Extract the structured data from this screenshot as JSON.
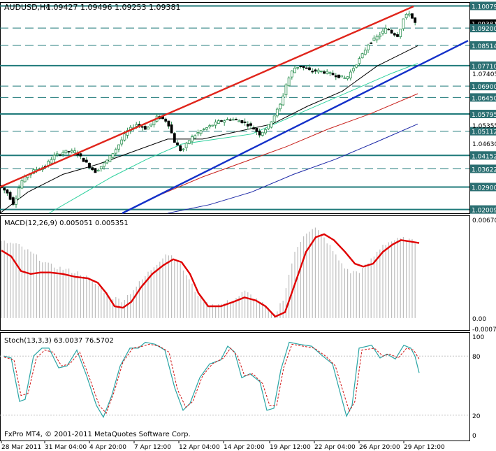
{
  "chart_data": [
    {
      "type": "candlestick",
      "title": "AUDUSD,H4",
      "ohlc_header": "1.09427 1.09496 1.09253 1.09381",
      "x_ticks": [
        "28 Mar 2011",
        "31 Mar 04:00",
        "4 Apr 20:00",
        "7 Apr 12:00",
        "12 Apr 04:00",
        "14 Apr 20:00",
        "19 Apr 12:00",
        "22 Apr 04:00",
        "26 Apr 20:00",
        "29 Apr 12:00"
      ],
      "ylim": [
        1.0186,
        1.1023
      ],
      "y_ticks": [
        "1.07405",
        "1.05355",
        "1.04630"
      ],
      "price_levels": [
        "1.10079",
        "1.09381",
        "1.09200",
        "1.08514",
        "1.07710",
        "1.06900",
        "1.06450",
        "1.05795",
        "1.05112",
        "1.04152",
        "1.03622",
        "1.02900",
        "1.02009"
      ],
      "current_price": 1.09381,
      "price_path": [
        [
          0,
          1.03
        ],
        [
          14,
          1.027
        ],
        [
          24,
          1.022
        ],
        [
          34,
          1.031
        ],
        [
          44,
          1.034
        ],
        [
          56,
          1.036
        ],
        [
          68,
          1.037
        ],
        [
          80,
          1.041
        ],
        [
          96,
          1.043
        ],
        [
          112,
          1.043
        ],
        [
          126,
          1.039
        ],
        [
          140,
          1.035
        ],
        [
          156,
          1.039
        ],
        [
          170,
          1.044
        ],
        [
          186,
          1.051
        ],
        [
          200,
          1.054
        ],
        [
          214,
          1.052
        ],
        [
          230,
          1.057
        ],
        [
          244,
          1.055
        ],
        [
          254,
          1.047
        ],
        [
          264,
          1.043
        ],
        [
          276,
          1.048
        ],
        [
          290,
          1.051
        ],
        [
          304,
          1.053
        ],
        [
          318,
          1.055
        ],
        [
          334,
          1.056
        ],
        [
          350,
          1.055
        ],
        [
          364,
          1.053
        ],
        [
          376,
          1.05
        ],
        [
          388,
          1.053
        ],
        [
          398,
          1.058
        ],
        [
          406,
          1.062
        ],
        [
          414,
          1.07
        ],
        [
          424,
          1.076
        ],
        [
          434,
          1.077
        ],
        [
          448,
          1.075
        ],
        [
          462,
          1.075
        ],
        [
          476,
          1.074
        ],
        [
          488,
          1.073
        ],
        [
          500,
          1.072
        ],
        [
          512,
          1.077
        ],
        [
          522,
          1.081
        ],
        [
          532,
          1.086
        ],
        [
          542,
          1.088
        ],
        [
          550,
          1.09
        ],
        [
          558,
          1.092
        ],
        [
          566,
          1.09
        ],
        [
          574,
          1.089
        ],
        [
          582,
          1.096
        ],
        [
          590,
          1.098
        ],
        [
          598,
          1.094
        ]
      ],
      "trendlines": [
        {
          "name": "upper",
          "color": "#e0251b",
          "from": [
            0,
            1.029
          ],
          "to": [
            592,
            1.1006
          ]
        },
        {
          "name": "lower",
          "color": "#1330c9",
          "from": [
            175,
            1.0186
          ],
          "to": [
            670,
            1.087
          ]
        }
      ],
      "moving_averages": [
        {
          "color": "#000000",
          "points": [
            [
              0,
              1.0186
            ],
            [
              40,
              1.027
            ],
            [
              90,
              1.034
            ],
            [
              140,
              1.038
            ],
            [
              190,
              1.043
            ],
            [
              240,
              1.048
            ],
            [
              290,
              1.048
            ],
            [
              340,
              1.051
            ],
            [
              390,
              1.054
            ],
            [
              440,
              1.061
            ],
            [
              490,
              1.067
            ],
            [
              540,
              1.077
            ],
            [
              598,
              1.085
            ]
          ]
        },
        {
          "color": "#2ed19e",
          "points": [
            [
              70,
              1.0186
            ],
            [
              110,
              1.025
            ],
            [
              160,
              1.033
            ],
            [
              210,
              1.04
            ],
            [
              260,
              1.046
            ],
            [
              310,
              1.048
            ],
            [
              360,
              1.05
            ],
            [
              410,
              1.056
            ],
            [
              460,
              1.062
            ],
            [
              510,
              1.068
            ],
            [
              560,
              1.074
            ],
            [
              598,
              1.078
            ]
          ]
        },
        {
          "color": "#c8201b",
          "points": [
            [
              175,
              1.0186
            ],
            [
              230,
              1.026
            ],
            [
              290,
              1.033
            ],
            [
              350,
              1.039
            ],
            [
              410,
              1.045
            ],
            [
              470,
              1.052
            ],
            [
              530,
              1.058
            ],
            [
              598,
              1.066
            ]
          ]
        },
        {
          "color": "#1a26a6",
          "points": [
            [
              240,
              1.0186
            ],
            [
              300,
              1.022
            ],
            [
              360,
              1.027
            ],
            [
              420,
              1.034
            ],
            [
              480,
              1.04
            ],
            [
              540,
              1.047
            ],
            [
              598,
              1.054
            ]
          ]
        }
      ]
    },
    {
      "type": "bar",
      "title": "MACD(12,26,9) 0.005051 0.005351",
      "ylim": [
        -0.00072,
        0.0067
      ],
      "y_ticks": [
        "0.00670",
        "0.00",
        "-0.00072"
      ],
      "histogram": [
        [
          2,
          0.0052
        ],
        [
          24,
          0.005
        ],
        [
          46,
          0.0044
        ],
        [
          70,
          0.0036
        ],
        [
          94,
          0.0033
        ],
        [
          118,
          0.003
        ],
        [
          140,
          0.0022
        ],
        [
          160,
          0.0014
        ],
        [
          176,
          0.0012
        ],
        [
          196,
          0.0022
        ],
        [
          218,
          0.0034
        ],
        [
          238,
          0.0044
        ],
        [
          252,
          0.0041
        ],
        [
          266,
          0.003
        ],
        [
          280,
          0.0018
        ],
        [
          296,
          0.001
        ],
        [
          316,
          0.0009
        ],
        [
          336,
          0.0013
        ],
        [
          350,
          0.0018
        ],
        [
          364,
          0.0014
        ],
        [
          380,
          0.0008
        ],
        [
          392,
          0.0001
        ],
        [
          406,
          0.0014
        ],
        [
          420,
          0.0042
        ],
        [
          436,
          0.0058
        ],
        [
          452,
          0.0061
        ],
        [
          468,
          0.0052
        ],
        [
          484,
          0.004
        ],
        [
          500,
          0.0031
        ],
        [
          516,
          0.0032
        ],
        [
          532,
          0.004
        ],
        [
          548,
          0.005
        ],
        [
          564,
          0.0053
        ],
        [
          580,
          0.0054
        ],
        [
          598,
          0.0051
        ]
      ],
      "signal": [
        [
          2,
          0.0046
        ],
        [
          16,
          0.0042
        ],
        [
          30,
          0.0032
        ],
        [
          44,
          0.003
        ],
        [
          58,
          0.0031
        ],
        [
          72,
          0.0031
        ],
        [
          90,
          0.003
        ],
        [
          108,
          0.0028
        ],
        [
          126,
          0.0027
        ],
        [
          140,
          0.0024
        ],
        [
          152,
          0.0017
        ],
        [
          164,
          0.0008
        ],
        [
          176,
          0.0007
        ],
        [
          188,
          0.0011
        ],
        [
          202,
          0.0021
        ],
        [
          218,
          0.003
        ],
        [
          234,
          0.0036
        ],
        [
          248,
          0.004
        ],
        [
          260,
          0.0038
        ],
        [
          272,
          0.003
        ],
        [
          284,
          0.0017
        ],
        [
          298,
          0.0008
        ],
        [
          316,
          0.0008
        ],
        [
          334,
          0.0011
        ],
        [
          350,
          0.0014
        ],
        [
          366,
          0.0012
        ],
        [
          380,
          0.0008
        ],
        [
          394,
          0.0001
        ],
        [
          408,
          0.0004
        ],
        [
          422,
          0.0023
        ],
        [
          438,
          0.0045
        ],
        [
          452,
          0.0055
        ],
        [
          464,
          0.0057
        ],
        [
          478,
          0.0053
        ],
        [
          494,
          0.0045
        ],
        [
          508,
          0.0037
        ],
        [
          520,
          0.0035
        ],
        [
          534,
          0.0037
        ],
        [
          548,
          0.0045
        ],
        [
          562,
          0.005
        ],
        [
          574,
          0.0053
        ],
        [
          588,
          0.0052
        ],
        [
          600,
          0.0051
        ]
      ]
    },
    {
      "type": "line",
      "title": "Stoch(13,3,3) 63.0037 76.5702",
      "ylim": [
        0,
        100
      ],
      "y_ticks": [
        "100",
        "80",
        "20",
        "0"
      ],
      "main_line": [
        [
          6,
          80
        ],
        [
          16,
          78
        ],
        [
          28,
          34
        ],
        [
          36,
          36
        ],
        [
          48,
          80
        ],
        [
          60,
          88
        ],
        [
          70,
          88
        ],
        [
          84,
          68
        ],
        [
          96,
          70
        ],
        [
          110,
          86
        ],
        [
          124,
          60
        ],
        [
          138,
          30
        ],
        [
          148,
          18
        ],
        [
          160,
          40
        ],
        [
          172,
          70
        ],
        [
          186,
          88
        ],
        [
          198,
          88
        ],
        [
          208,
          94
        ],
        [
          222,
          92
        ],
        [
          236,
          86
        ],
        [
          250,
          48
        ],
        [
          262,
          25
        ],
        [
          272,
          32
        ],
        [
          286,
          58
        ],
        [
          300,
          72
        ],
        [
          316,
          76
        ],
        [
          326,
          90
        ],
        [
          336,
          84
        ],
        [
          346,
          58
        ],
        [
          358,
          62
        ],
        [
          372,
          54
        ],
        [
          382,
          25
        ],
        [
          392,
          27
        ],
        [
          402,
          66
        ],
        [
          414,
          94
        ],
        [
          428,
          92
        ],
        [
          446,
          90
        ],
        [
          462,
          80
        ],
        [
          476,
          72
        ],
        [
          488,
          40
        ],
        [
          496,
          19
        ],
        [
          504,
          30
        ],
        [
          514,
          88
        ],
        [
          532,
          91
        ],
        [
          544,
          78
        ],
        [
          554,
          82
        ],
        [
          566,
          77
        ],
        [
          578,
          91
        ],
        [
          588,
          88
        ],
        [
          594,
          80
        ],
        [
          600,
          63
        ]
      ],
      "signal_line": [
        [
          6,
          79
        ],
        [
          20,
          76
        ],
        [
          30,
          40
        ],
        [
          40,
          42
        ],
        [
          52,
          78
        ],
        [
          64,
          86
        ],
        [
          76,
          84
        ],
        [
          88,
          70
        ],
        [
          100,
          72
        ],
        [
          114,
          84
        ],
        [
          128,
          58
        ],
        [
          142,
          30
        ],
        [
          152,
          22
        ],
        [
          164,
          45
        ],
        [
          176,
          74
        ],
        [
          190,
          88
        ],
        [
          204,
          90
        ],
        [
          214,
          92
        ],
        [
          228,
          90
        ],
        [
          242,
          84
        ],
        [
          254,
          46
        ],
        [
          266,
          28
        ],
        [
          276,
          34
        ],
        [
          290,
          60
        ],
        [
          304,
          72
        ],
        [
          320,
          78
        ],
        [
          330,
          88
        ],
        [
          340,
          80
        ],
        [
          350,
          60
        ],
        [
          362,
          62
        ],
        [
          376,
          52
        ],
        [
          386,
          30
        ],
        [
          396,
          30
        ],
        [
          406,
          68
        ],
        [
          418,
          92
        ],
        [
          434,
          90
        ],
        [
          450,
          88
        ],
        [
          466,
          80
        ],
        [
          480,
          70
        ],
        [
          492,
          42
        ],
        [
          500,
          24
        ],
        [
          508,
          34
        ],
        [
          518,
          86
        ],
        [
          536,
          88
        ],
        [
          548,
          80
        ],
        [
          558,
          82
        ],
        [
          570,
          78
        ],
        [
          582,
          88
        ],
        [
          592,
          86
        ],
        [
          600,
          77
        ]
      ]
    }
  ],
  "copyright": "FxPro MT4, © 2001-2011 MetaQuotes Software Corp.",
  "colors": {
    "level_line": "#1f7a7a",
    "level_box": "#2b6f72",
    "candles": "#2a8f4f",
    "macd_signal": "#e00000",
    "macd_hist": "#bdbdbd",
    "stoch_main": "#2aa5a5",
    "stoch_signal": "#d01010"
  }
}
